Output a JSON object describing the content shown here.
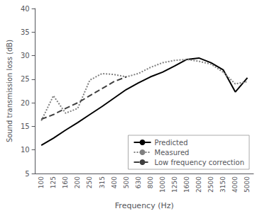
{
  "chart_data": {
    "type": "line",
    "xlabel": "Frequency (Hz)",
    "ylabel": "Sound transmission loss (dB)",
    "categories": [
      100,
      125,
      160,
      200,
      250,
      315,
      400,
      500,
      630,
      800,
      1000,
      1250,
      1600,
      2000,
      2500,
      3150,
      4000,
      5000
    ],
    "series": [
      {
        "name": "Predicted",
        "color": "#000000",
        "line_style": "solid",
        "values": [
          11.0,
          12.5,
          14.2,
          15.8,
          17.5,
          19.2,
          21.0,
          22.8,
          24.2,
          25.5,
          26.5,
          27.8,
          29.2,
          29.5,
          28.5,
          27.0,
          22.3,
          25.3
        ]
      },
      {
        "name": "Measured",
        "color": "#808080",
        "line_style": "dotted",
        "values": [
          16.2,
          21.5,
          17.8,
          18.8,
          24.8,
          26.2,
          26.0,
          25.5,
          26.2,
          27.5,
          28.5,
          29.0,
          29.2,
          28.8,
          28.2,
          26.5,
          24.0,
          24.5
        ]
      },
      {
        "name": "Low frequency correction",
        "color": "#404040",
        "line_style": "dashed",
        "values": [
          16.5,
          17.5,
          18.8,
          20.0,
          21.5,
          23.0,
          24.5,
          25.5,
          null,
          null,
          null,
          null,
          null,
          null,
          null,
          null,
          null,
          null
        ]
      }
    ],
    "ylim": [
      5,
      40
    ],
    "yticks": [
      5,
      10,
      15,
      20,
      25,
      30,
      35,
      40
    ],
    "grid": false,
    "legend": "lower right"
  }
}
